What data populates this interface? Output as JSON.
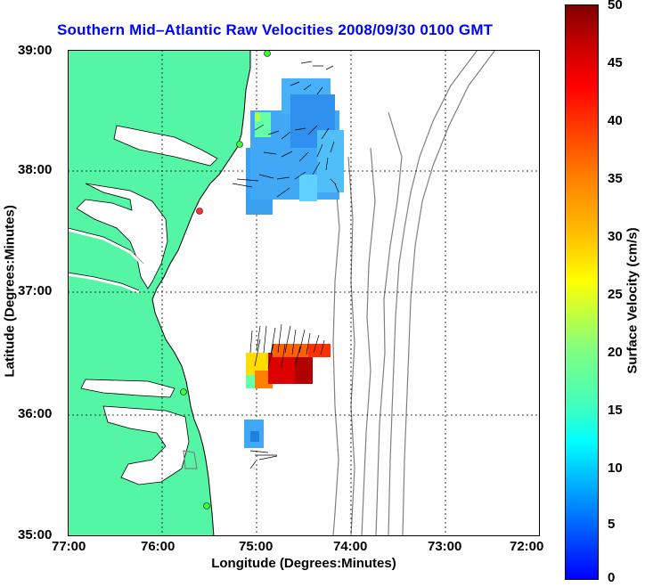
{
  "title": "Southern Mid–Atlantic Raw Velocities 2008/09/30 0100 GMT",
  "xlabel": "Longitude (Degrees:Minutes)",
  "ylabel": "Latitude (Degrees:Minutes)",
  "x_ticks": [
    "77:00",
    "76:00",
    "75:00",
    "74:00",
    "73:00",
    "72:00"
  ],
  "y_ticks": [
    "39:00",
    "38:00",
    "37:00",
    "36:00",
    "35:00"
  ],
  "colorbar": {
    "label": "Surface Velocity (cm/s)",
    "ticks": [
      "50",
      "45",
      "40",
      "35",
      "30",
      "25",
      "20",
      "15",
      "10",
      "5",
      "0"
    ],
    "range": [
      0,
      50
    ]
  },
  "colors": {
    "title": "#0000ff",
    "land": "#55f5a6",
    "ocean": "#ffffff",
    "contour": "#808080"
  }
}
